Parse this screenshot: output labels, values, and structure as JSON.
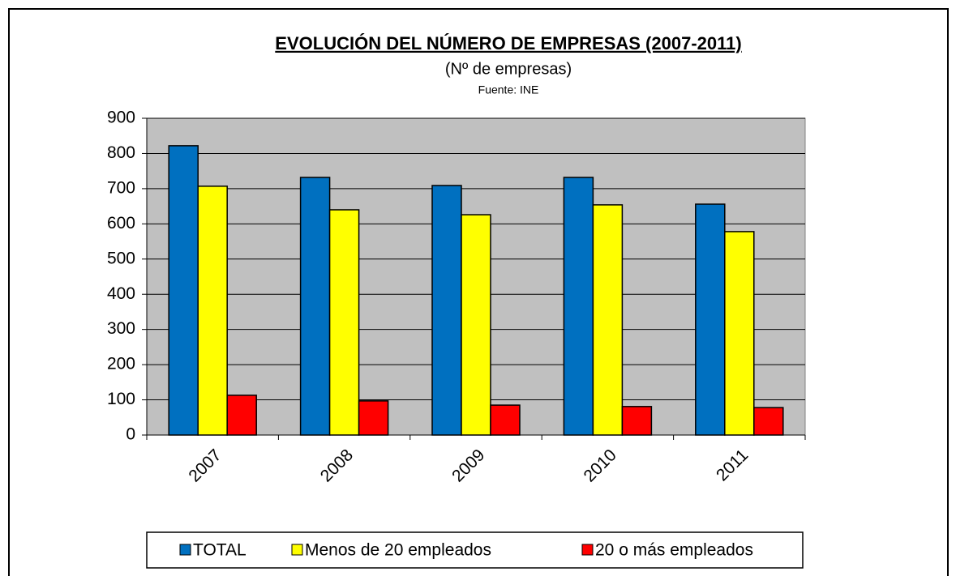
{
  "chart_data": {
    "type": "bar",
    "title": "EVOLUCIÓN DEL NÚMERO DE EMPRESAS (2007-2011)",
    "subtitle": "(Nº de empresas)",
    "source": "Fuente: INE",
    "categories": [
      "2007",
      "2008",
      "2009",
      "2010",
      "2011"
    ],
    "series": [
      {
        "name": "TOTAL",
        "color": "#0070c0",
        "values": [
          822,
          732,
          709,
          732,
          656
        ]
      },
      {
        "name": "Menos de 20 empleados",
        "color": "#ffff00",
        "values": [
          707,
          640,
          626,
          654,
          578
        ]
      },
      {
        "name": "20 o más empleados",
        "color": "#ff0000",
        "values": [
          113,
          97,
          85,
          81,
          78
        ]
      }
    ],
    "ylim": [
      0,
      900
    ],
    "yticks": [
      0,
      100,
      200,
      300,
      400,
      500,
      600,
      700,
      800,
      900
    ],
    "grid": true,
    "legend": "bottom"
  }
}
